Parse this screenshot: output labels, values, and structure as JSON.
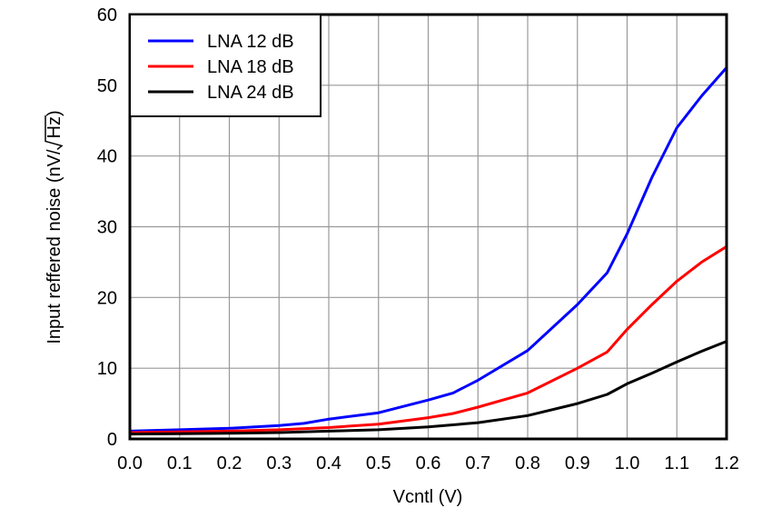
{
  "chart_data": {
    "type": "line",
    "title": "",
    "xlabel": "Vcntl (V)",
    "ylabel_prefix": "Input reffered noise  (nV/",
    "ylabel_radicand": "Hz",
    "ylabel_suffix": ")",
    "xlim": [
      0.0,
      1.2
    ],
    "ylim": [
      0,
      60
    ],
    "xticks": [
      "0.0",
      "0.1",
      "0.2",
      "0.3",
      "0.4",
      "0.5",
      "0.6",
      "0.7",
      "0.8",
      "0.9",
      "1.0",
      "1.1",
      "1.2"
    ],
    "yticks": [
      "0",
      "10",
      "20",
      "30",
      "40",
      "50",
      "60"
    ],
    "grid": true,
    "legend_position": "top-left",
    "series": [
      {
        "name": "LNA 12 dB",
        "color": "#0000ff",
        "x": [
          0,
          0.1,
          0.2,
          0.3,
          0.35,
          0.4,
          0.5,
          0.55,
          0.6,
          0.65,
          0.7,
          0.8,
          0.9,
          0.96,
          1.0,
          1.05,
          1.1,
          1.15,
          1.2
        ],
        "y": [
          1.1,
          1.3,
          1.5,
          1.9,
          2.2,
          2.8,
          3.7,
          4.6,
          5.5,
          6.5,
          8.3,
          12.5,
          19,
          23.5,
          29,
          37,
          44,
          48.5,
          52.5
        ]
      },
      {
        "name": "LNA 18 dB",
        "color": "#ff0000",
        "x": [
          0,
          0.1,
          0.2,
          0.3,
          0.4,
          0.5,
          0.6,
          0.65,
          0.7,
          0.8,
          0.9,
          0.96,
          1.0,
          1.05,
          1.1,
          1.15,
          1.2
        ],
        "y": [
          0.9,
          1.0,
          1.1,
          1.3,
          1.6,
          2.1,
          3.0,
          3.6,
          4.5,
          6.5,
          10,
          12.3,
          15.5,
          19,
          22.3,
          25,
          27.2
        ]
      },
      {
        "name": "LNA 24 dB",
        "color": "#000000",
        "x": [
          0,
          0.1,
          0.2,
          0.3,
          0.4,
          0.5,
          0.6,
          0.7,
          0.8,
          0.9,
          0.96,
          1.0,
          1.05,
          1.1,
          1.15,
          1.2
        ],
        "y": [
          0.7,
          0.75,
          0.8,
          0.9,
          1.1,
          1.3,
          1.7,
          2.3,
          3.3,
          5.0,
          6.3,
          7.8,
          9.3,
          10.9,
          12.4,
          13.8
        ]
      }
    ]
  }
}
